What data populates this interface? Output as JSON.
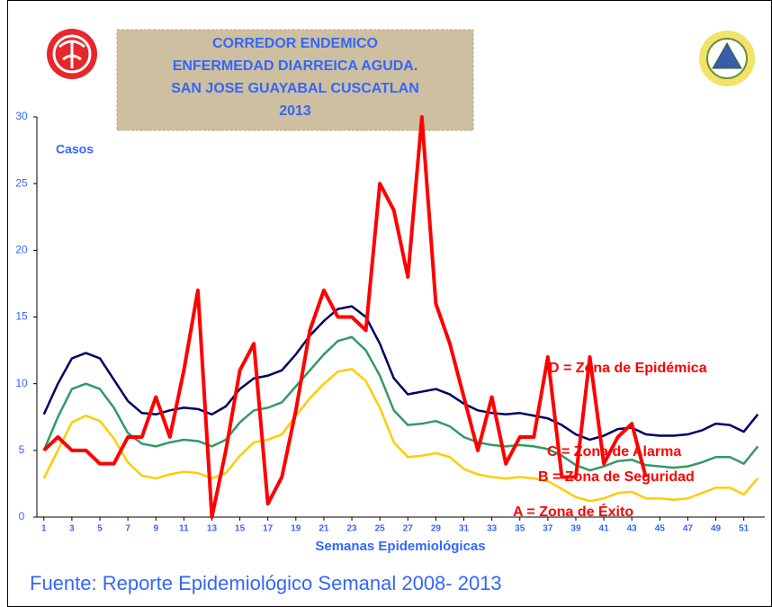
{
  "chart_data": {
    "type": "line",
    "title_lines": [
      "CORREDOR ENDEMICO",
      "ENFERMEDAD DIARREICA AGUDA.",
      "SAN JOSE GUAYABAL CUSCATLAN",
      "2013"
    ],
    "ylabel": "Casos",
    "xlabel": "Semanas Epidemiológicas",
    "source": "Fuente: Reporte Epidemiológico Semanal  2008- 2013",
    "annotations": [
      "D = Zona de Epidémica",
      "C = Zona de Alarma",
      "B = Zona de Seguridad",
      "A = Zona de Éxito"
    ],
    "x": [
      1,
      2,
      3,
      4,
      5,
      6,
      7,
      8,
      9,
      10,
      11,
      12,
      13,
      14,
      15,
      16,
      17,
      18,
      19,
      20,
      21,
      22,
      23,
      24,
      25,
      26,
      27,
      28,
      29,
      30,
      31,
      32,
      33,
      34,
      35,
      36,
      37,
      38,
      39,
      40,
      41,
      42,
      43,
      44,
      45,
      46,
      47,
      48,
      49,
      50,
      51,
      52
    ],
    "xlim": [
      0.5,
      52.5
    ],
    "xticks": [
      1,
      3,
      5,
      7,
      9,
      11,
      13,
      15,
      17,
      19,
      21,
      23,
      25,
      27,
      29,
      31,
      33,
      35,
      37,
      39,
      41,
      43,
      45,
      47,
      49,
      51
    ],
    "ylim": [
      0,
      30
    ],
    "yticks": [
      0,
      5,
      10,
      15,
      20,
      25,
      30
    ],
    "series": [
      {
        "color": "#000066",
        "values": [
          7.7,
          10,
          11.9,
          12.3,
          11.9,
          10.3,
          8.7,
          7.8,
          7.7,
          8,
          8.2,
          8.1,
          7.7,
          8.3,
          9.6,
          10.4,
          10.6,
          11,
          12.2,
          13.6,
          14.7,
          15.6,
          15.8,
          15,
          13,
          10.4,
          9.2,
          9.4,
          9.6,
          9.2,
          8.5,
          8,
          7.8,
          7.7,
          7.8,
          7.6,
          7.4,
          6.9,
          6.2,
          5.8,
          6.1,
          6.6,
          6.7,
          6.2,
          6.1,
          6.1,
          6.2,
          6.5,
          7,
          6.9,
          6.4,
          7.7
        ]
      },
      {
        "color": "#339966",
        "values": [
          5,
          7.5,
          9.6,
          10,
          9.6,
          8.2,
          6.3,
          5.5,
          5.3,
          5.6,
          5.8,
          5.7,
          5.3,
          5.8,
          7.1,
          8,
          8.2,
          8.6,
          9.8,
          11,
          12.2,
          13.2,
          13.5,
          12.5,
          10.6,
          8,
          6.9,
          7,
          7.2,
          6.8,
          6,
          5.6,
          5.4,
          5.3,
          5.4,
          5.3,
          5.1,
          4.6,
          3.9,
          3.5,
          3.8,
          4.2,
          4.3,
          3.9,
          3.8,
          3.7,
          3.8,
          4.1,
          4.5,
          4.5,
          4,
          5.3
        ]
      },
      {
        "color": "#ffcc00",
        "values": [
          2.9,
          5,
          7.1,
          7.6,
          7.2,
          5.9,
          4.1,
          3.1,
          2.9,
          3.2,
          3.4,
          3.3,
          2.9,
          3.3,
          4.6,
          5.6,
          5.8,
          6.2,
          7.6,
          8.9,
          10,
          10.9,
          11.1,
          10.2,
          8.2,
          5.6,
          4.5,
          4.6,
          4.8,
          4.5,
          3.6,
          3.2,
          3,
          2.9,
          3,
          2.9,
          2.7,
          2.1,
          1.5,
          1.2,
          1.4,
          1.8,
          1.9,
          1.4,
          1.4,
          1.3,
          1.4,
          1.8,
          2.2,
          2.2,
          1.7,
          2.9
        ]
      },
      {
        "color": "#ff0000",
        "values": [
          5,
          6,
          5,
          5,
          4,
          4,
          6,
          6,
          9,
          6,
          11,
          17,
          0,
          5,
          11,
          13,
          1,
          3,
          8,
          14,
          17,
          15,
          15,
          14,
          25,
          23,
          18,
          30,
          16,
          13,
          9,
          5,
          9,
          4,
          6,
          6,
          12,
          3,
          3,
          12,
          4,
          6,
          7,
          3,
          null,
          null,
          null,
          null,
          null,
          null,
          null,
          null
        ]
      }
    ]
  }
}
